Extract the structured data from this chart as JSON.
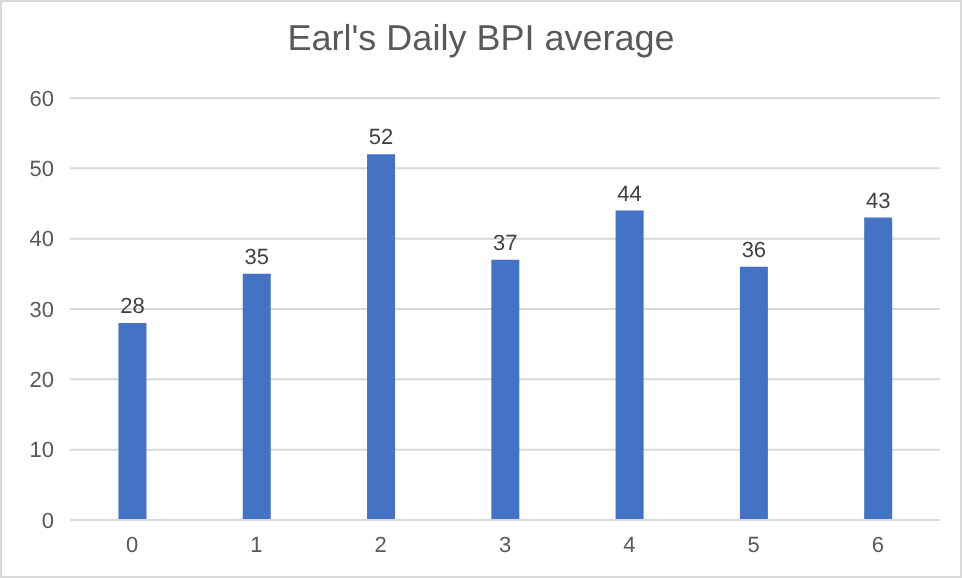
{
  "chart_data": {
    "type": "bar",
    "title": "Earl's Daily BPI average",
    "categories": [
      "0",
      "1",
      "2",
      "3",
      "4",
      "5",
      "6"
    ],
    "values": [
      28,
      35,
      52,
      37,
      44,
      36,
      43
    ],
    "color": "#4472c4",
    "ylim": [
      0,
      60
    ],
    "yticks": [
      0,
      10,
      20,
      30,
      40,
      50,
      60
    ],
    "grid": "y",
    "data_labels": true
  }
}
